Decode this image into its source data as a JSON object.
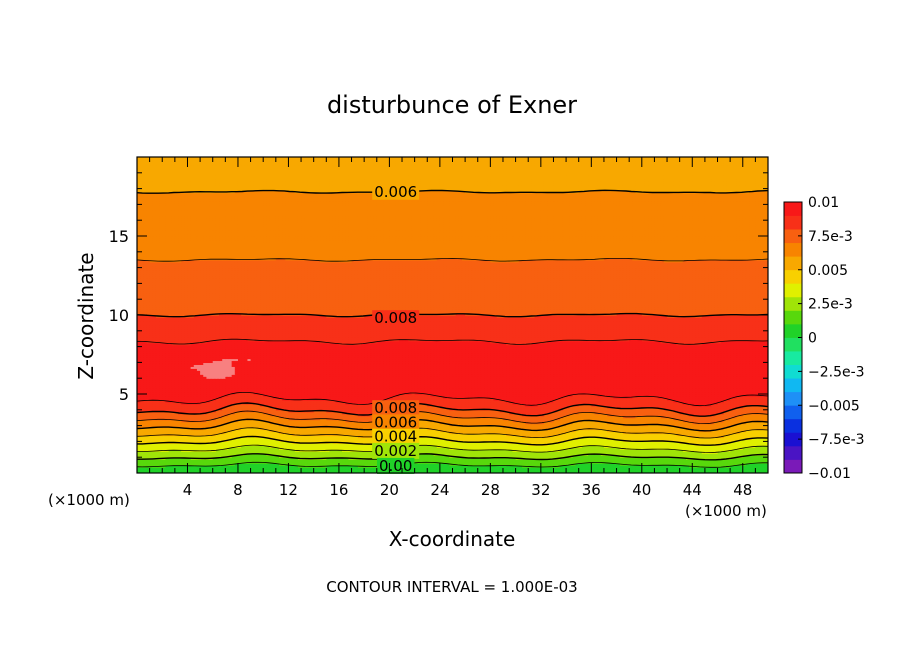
{
  "chart_data": {
    "type": "heatmap",
    "subtype": "filled-contour",
    "title": "disturbunce of Exner",
    "xlabel": "X-coordinate",
    "ylabel": "Z-coordinate",
    "x_unit_label": "(×1000 m)",
    "y_unit_label": "(×1000 m)",
    "footer": "CONTOUR INTERVAL = 1.000E-03",
    "xlim": [
      0,
      50
    ],
    "ylim": [
      0,
      20
    ],
    "x_ticks": [
      4,
      8,
      12,
      16,
      20,
      24,
      28,
      32,
      36,
      40,
      44,
      48
    ],
    "x_tick_labels": [
      "4",
      "8",
      "12",
      "16",
      "20",
      "24",
      "28",
      "32",
      "36",
      "40",
      "44",
      "48"
    ],
    "y_ticks": [
      5,
      10,
      15
    ],
    "y_tick_labels": [
      "5",
      "10",
      "15"
    ],
    "grid": false,
    "colorbar": {
      "min": -0.01,
      "max": 0.01,
      "levels": [
        -0.01,
        -0.009,
        -0.008,
        -0.007,
        -0.006,
        -0.005,
        -0.004,
        -0.003,
        -0.002,
        -0.001,
        0,
        0.001,
        0.002,
        0.003,
        0.004,
        0.005,
        0.006,
        0.007,
        0.008,
        0.009,
        0.01
      ],
      "colors": [
        "#7a1ab8",
        "#4a14c4",
        "#1a10d2",
        "#0a30e0",
        "#1060ee",
        "#1e90f6",
        "#10b8f2",
        "#10dcd2",
        "#18eaa0",
        "#20e060",
        "#20d228",
        "#58d80c",
        "#a0e408",
        "#e0f000",
        "#f8d000",
        "#f8a800",
        "#f88400",
        "#f86010",
        "#f83018",
        "#f81818",
        "#f88080"
      ],
      "tick_values": [
        0.01,
        0.0075,
        0.005,
        0.0025,
        0,
        -0.0025,
        -0.005,
        -0.0075,
        -0.01
      ],
      "tick_labels": [
        "0.01",
        "7.5e-3",
        "0.005",
        "2.5e-3",
        "0",
        "−2.5e-3",
        "−0.005",
        "−7.5e-3",
        "−0.01"
      ]
    },
    "contour_labels": [
      {
        "x": 20.5,
        "z": 17.8,
        "text": "0.006"
      },
      {
        "x": 20.5,
        "z": 9.8,
        "text": "0.008"
      },
      {
        "x": 20.5,
        "z": 4.1,
        "text": "0.008"
      },
      {
        "x": 20.5,
        "z": 3.2,
        "text": "0.006"
      },
      {
        "x": 20.5,
        "z": 2.3,
        "text": "0.004"
      },
      {
        "x": 20.5,
        "z": 1.4,
        "text": "0.002"
      },
      {
        "x": 20.5,
        "z": 0.45,
        "text": "0.00"
      }
    ],
    "profile": {
      "z": [
        0,
        0.5,
        1.0,
        1.5,
        2.0,
        2.5,
        3.0,
        3.5,
        4.0,
        4.5,
        5.0,
        5.5,
        6.0,
        7.0,
        7.5,
        8.0,
        9.0,
        10.0,
        11.0,
        12.0,
        13.5,
        14.5,
        15.5,
        16.5,
        17.8,
        19.0,
        20.0
      ],
      "value": [
        0.0,
        0.001,
        0.002,
        0.003,
        0.004,
        0.005,
        0.006,
        0.007,
        0.008,
        0.0088,
        0.0093,
        0.0097,
        0.0099,
        0.01,
        0.0098,
        0.0092,
        0.0086,
        0.008,
        0.0077,
        0.0074,
        0.007,
        0.0066,
        0.0063,
        0.0062,
        0.006,
        0.0055,
        0.005
      ]
    },
    "local_maximum": {
      "x": 6.5,
      "z": 6.4,
      "value": 0.0101
    }
  }
}
